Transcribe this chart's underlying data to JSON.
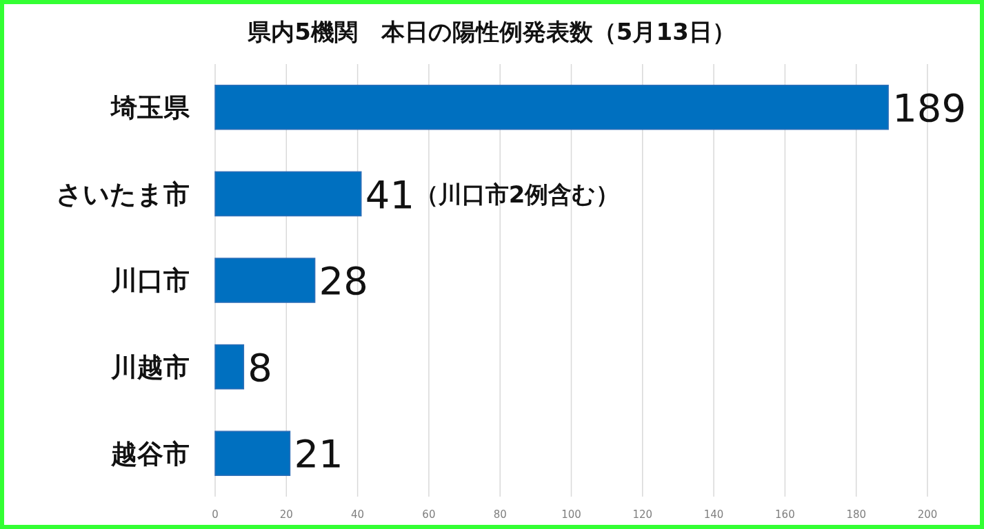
{
  "chart_data": {
    "type": "bar",
    "orientation": "horizontal",
    "title": "県内5機関　本日の陽性例発表数（5月13日）",
    "categories": [
      "埼玉県",
      "さいたま市",
      "川口市",
      "川越市",
      "越谷市"
    ],
    "values": [
      189,
      41,
      28,
      8,
      21
    ],
    "color": "#0070c0",
    "xlim": [
      0,
      200
    ],
    "xticks": [
      0,
      20,
      40,
      60,
      80,
      100,
      120,
      140,
      160,
      180,
      200
    ],
    "grid": "x",
    "data_labels": true,
    "annotations": [
      {
        "text": "（川口市2例含む）",
        "x": 41,
        "y": "さいたま市"
      }
    ]
  }
}
